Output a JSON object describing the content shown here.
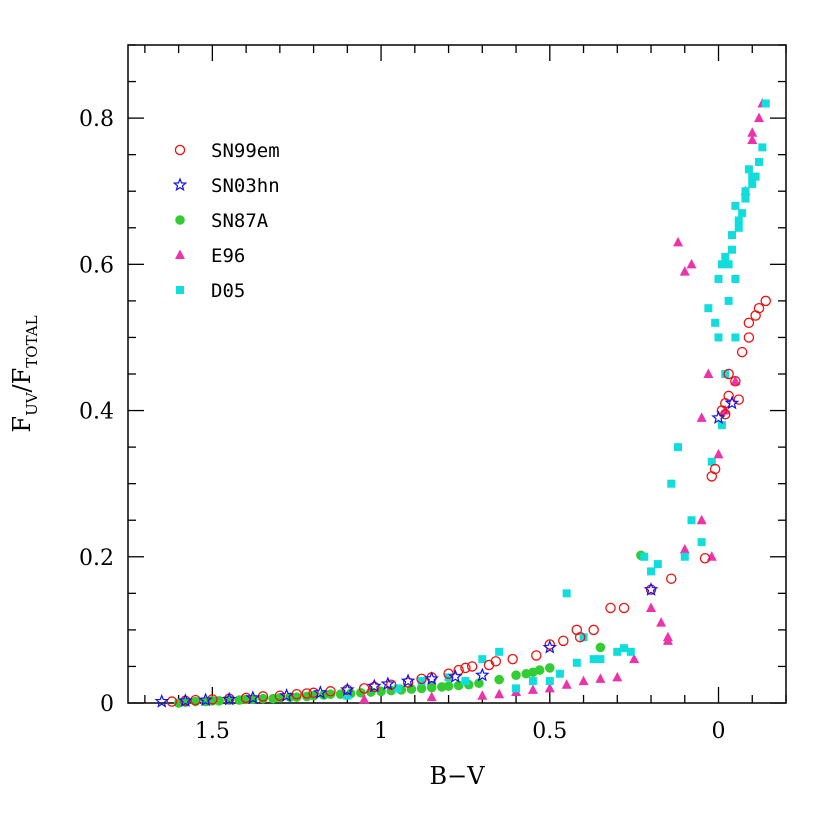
{
  "chart_data": {
    "type": "scatter",
    "xlabel": "B−V",
    "ylabel": {
      "main": "F",
      "sub1": "UV",
      "slash": "/F",
      "sub2": "TOTAL"
    },
    "xlim": [
      1.75,
      -0.2
    ],
    "ylim": [
      0,
      0.9
    ],
    "x_reversed": true,
    "x_ticks": [
      {
        "value": 1.5,
        "label": "1.5"
      },
      {
        "value": 1.0,
        "label": "1"
      },
      {
        "value": 0.5,
        "label": "0.5"
      },
      {
        "value": 0.0,
        "label": "0"
      }
    ],
    "y_ticks": [
      {
        "value": 0.0,
        "label": "0"
      },
      {
        "value": 0.2,
        "label": "0.2"
      },
      {
        "value": 0.4,
        "label": "0.4"
      },
      {
        "value": 0.6,
        "label": "0.6"
      },
      {
        "value": 0.8,
        "label": "0.8"
      }
    ],
    "grid": false,
    "legend_position": "top-left",
    "series": [
      {
        "name": "SN99em",
        "marker": "open-circle",
        "color": "#ee1111",
        "x": [
          1.62,
          1.58,
          1.55,
          1.5,
          1.45,
          1.4,
          1.35,
          1.3,
          1.25,
          1.22,
          1.2,
          1.15,
          1.1,
          1.05,
          1.02,
          0.97,
          0.92,
          0.88,
          0.85,
          0.8,
          0.77,
          0.75,
          0.73,
          0.68,
          0.66,
          0.61,
          0.54,
          0.5,
          0.46,
          0.42,
          0.41,
          0.37,
          0.32,
          0.28,
          0.2,
          0.14,
          0.04,
          0.02,
          0.01,
          -0.02,
          -0.03,
          -0.05,
          -0.06,
          -0.07,
          -0.09,
          -0.09,
          -0.11,
          -0.12,
          -0.14,
          -0.02,
          -0.03,
          -0.01
        ],
        "y": [
          0.002,
          0.003,
          0.004,
          0.005,
          0.006,
          0.007,
          0.009,
          0.01,
          0.012,
          0.013,
          0.014,
          0.016,
          0.018,
          0.02,
          0.022,
          0.025,
          0.028,
          0.033,
          0.035,
          0.04,
          0.045,
          0.048,
          0.05,
          0.052,
          0.057,
          0.06,
          0.065,
          0.08,
          0.085,
          0.1,
          0.09,
          0.1,
          0.13,
          0.13,
          0.155,
          0.17,
          0.198,
          0.31,
          0.32,
          0.395,
          0.42,
          0.44,
          0.415,
          0.48,
          0.5,
          0.52,
          0.53,
          0.54,
          0.55,
          0.41,
          0.45,
          0.4
        ]
      },
      {
        "name": "SN03hn",
        "marker": "open-star",
        "color": "#1111ee",
        "x": [
          1.65,
          1.58,
          1.52,
          1.45,
          1.38,
          1.28,
          1.18,
          1.1,
          1.02,
          0.98,
          0.92,
          0.85,
          0.78,
          0.7,
          0.5,
          0.2,
          0.0,
          -0.04
        ],
        "y": [
          0.002,
          0.003,
          0.004,
          0.005,
          0.007,
          0.01,
          0.014,
          0.018,
          0.023,
          0.026,
          0.03,
          0.033,
          0.036,
          0.038,
          0.076,
          0.155,
          0.39,
          0.41
        ]
      },
      {
        "name": "SN87A",
        "marker": "filled-circle",
        "color": "#33cc33",
        "x": [
          1.6,
          1.58,
          1.55,
          1.52,
          1.5,
          1.48,
          1.45,
          1.42,
          1.4,
          1.38,
          1.35,
          1.32,
          1.3,
          1.27,
          1.25,
          1.22,
          1.2,
          1.17,
          1.15,
          1.12,
          1.09,
          1.06,
          1.03,
          1.0,
          0.97,
          0.94,
          0.91,
          0.88,
          0.85,
          0.82,
          0.8,
          0.77,
          0.74,
          0.71,
          0.65,
          0.6,
          0.57,
          0.55,
          0.53,
          0.5,
          0.35,
          0.23
        ],
        "y": [
          0.0,
          0.001,
          0.002,
          0.002,
          0.003,
          0.003,
          0.004,
          0.004,
          0.005,
          0.005,
          0.006,
          0.006,
          0.007,
          0.008,
          0.008,
          0.009,
          0.01,
          0.011,
          0.012,
          0.012,
          0.013,
          0.014,
          0.015,
          0.016,
          0.017,
          0.018,
          0.019,
          0.02,
          0.021,
          0.022,
          0.023,
          0.024,
          0.025,
          0.027,
          0.032,
          0.038,
          0.04,
          0.042,
          0.045,
          0.048,
          0.076,
          0.202
        ]
      },
      {
        "name": "E96",
        "marker": "filled-triangle",
        "color": "#ee33aa",
        "x": [
          1.05,
          0.85,
          0.7,
          0.65,
          0.6,
          0.55,
          0.5,
          0.45,
          0.4,
          0.35,
          0.3,
          0.25,
          0.2,
          0.17,
          0.15,
          0.12,
          0.1,
          0.08,
          0.05,
          0.02,
          0.0,
          -0.02,
          -0.05,
          -0.08,
          -0.1,
          -0.1,
          -0.12,
          -0.13,
          0.15,
          0.1,
          0.05,
          0.03
        ],
        "y": [
          0.005,
          0.008,
          0.01,
          0.012,
          0.015,
          0.018,
          0.02,
          0.025,
          0.03,
          0.033,
          0.035,
          0.06,
          0.13,
          0.11,
          0.09,
          0.63,
          0.59,
          0.6,
          0.25,
          0.2,
          0.34,
          0.4,
          0.44,
          0.7,
          0.77,
          0.78,
          0.8,
          0.82,
          0.085,
          0.21,
          0.39,
          0.45
        ]
      },
      {
        "name": "D05",
        "marker": "filled-square",
        "color": "#11dddd",
        "x": [
          1.1,
          0.95,
          0.88,
          0.8,
          0.75,
          0.7,
          0.65,
          0.6,
          0.55,
          0.5,
          0.47,
          0.45,
          0.42,
          0.4,
          0.37,
          0.35,
          0.3,
          0.28,
          0.26,
          0.22,
          0.2,
          0.18,
          0.14,
          0.12,
          0.1,
          0.08,
          0.05,
          0.03,
          0.02,
          0.0,
          -0.01,
          -0.02,
          -0.03,
          -0.04,
          -0.05,
          -0.06,
          -0.07,
          -0.08,
          -0.09,
          -0.1,
          -0.11,
          -0.12,
          -0.13,
          -0.14,
          0.01,
          0.0,
          -0.01,
          -0.02,
          -0.04,
          -0.06,
          -0.08,
          -0.1,
          -0.05,
          -0.03,
          -0.05
        ],
        "y": [
          0.01,
          0.02,
          0.03,
          0.035,
          0.03,
          0.06,
          0.07,
          0.02,
          0.03,
          0.03,
          0.04,
          0.15,
          0.055,
          0.09,
          0.06,
          0.06,
          0.07,
          0.075,
          0.07,
          0.2,
          0.18,
          0.19,
          0.3,
          0.35,
          0.2,
          0.25,
          0.22,
          0.54,
          0.33,
          0.5,
          0.38,
          0.45,
          0.6,
          0.62,
          0.58,
          0.65,
          0.67,
          0.7,
          0.73,
          0.71,
          0.72,
          0.74,
          0.76,
          0.82,
          0.52,
          0.58,
          0.6,
          0.61,
          0.64,
          0.66,
          0.69,
          0.72,
          0.68,
          0.55,
          0.5
        ]
      }
    ]
  }
}
